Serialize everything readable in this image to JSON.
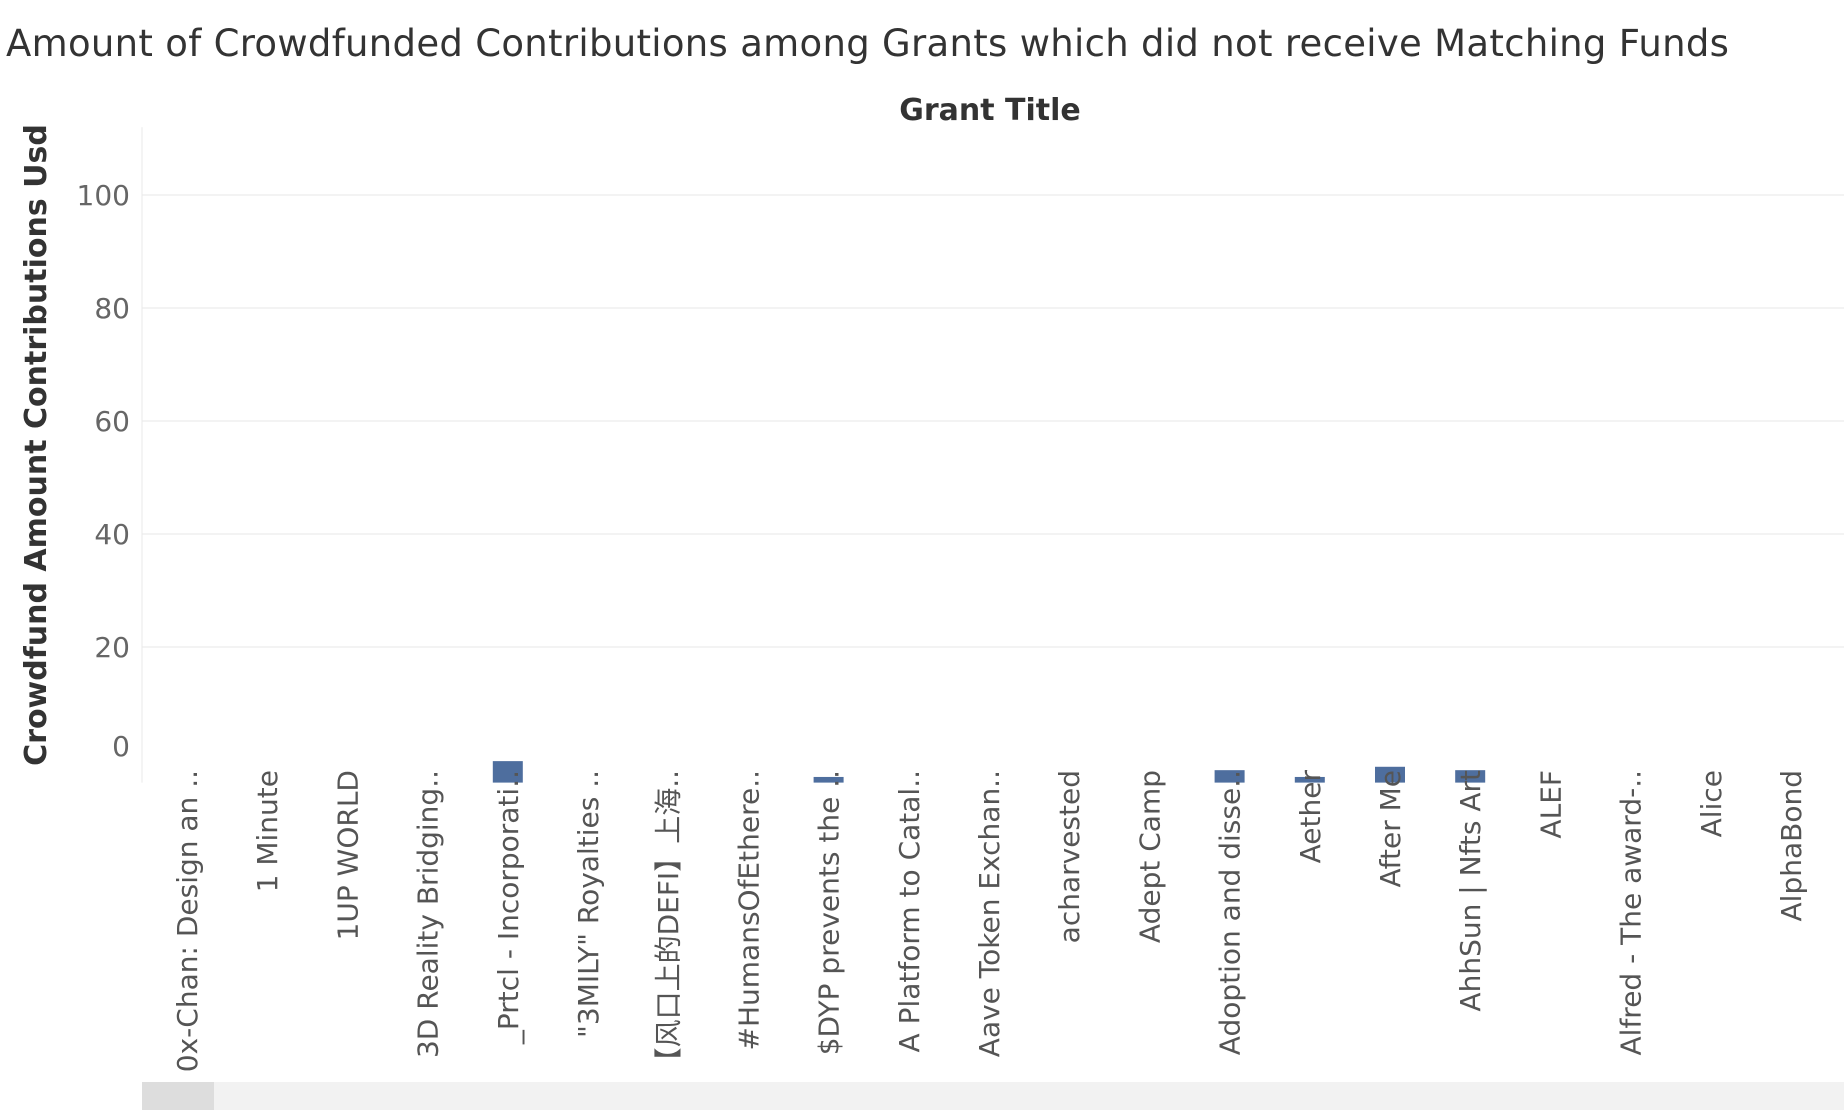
{
  "chart_data": {
    "type": "bar",
    "title": "Amount of Crowdfunded Contributions among Grants which did not receive Matching Funds",
    "column_header": "Grant Title",
    "ylabel": "Crowdfund Amount Contributions Usd",
    "ylim": [
      -4,
      112
    ],
    "yticks": [
      0,
      20,
      40,
      60,
      80,
      100
    ],
    "grid": true,
    "categories": [
      "0x-Chan: Design an ..",
      "1 Minute",
      "1UP WORLD",
      "3D Reality Bridging..",
      "_Prtcl - Incorporati..",
      "\"3MILY\" Royalties ..",
      "【风口上的DEFI】上海..",
      "#HumansOfEthere..",
      "$DYP prevents the ..",
      "A Platform to Catal..",
      "Aave Token Exchan..",
      "acharvested",
      "Adept Camp",
      "Adoption and disse..",
      "Aether",
      "After Me",
      "AhhSun | Nfts Art",
      "ALEF",
      "Alfred - The award-..",
      "Alice",
      "AlphaBond"
    ],
    "values": [
      0,
      0,
      0,
      0,
      3.8,
      0,
      0,
      0,
      1.0,
      0,
      0,
      0,
      0,
      2.2,
      1.0,
      2.8,
      2.2,
      0,
      0,
      0,
      0
    ],
    "colors": {
      "bar": "#4e6e9e",
      "grid": "#ececec"
    }
  }
}
